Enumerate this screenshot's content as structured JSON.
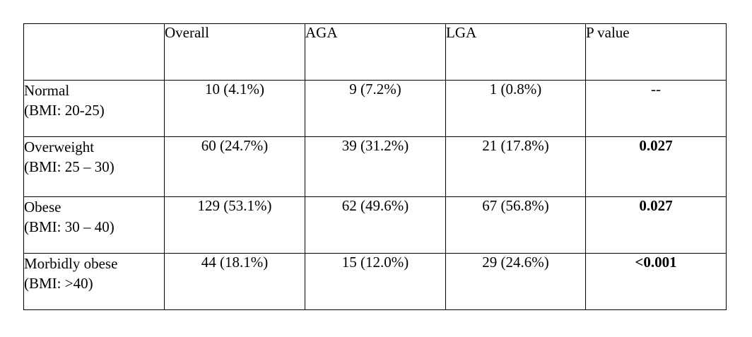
{
  "table": {
    "headers": [
      "",
      "Overall",
      "AGA",
      "LGA",
      "P value"
    ],
    "rows": [
      {
        "label_line1": "Normal",
        "label_line2": "(BMI: 20-25)",
        "overall": "10 (4.1%)",
        "aga": "9 (7.2%)",
        "lga": "1 (0.8%)",
        "p_value": "--"
      },
      {
        "label_line1": "Overweight",
        "label_line2": "(BMI: 25 – 30)",
        "overall": "60 (24.7%)",
        "aga": "39 (31.2%)",
        "lga": "21 (17.8%)",
        "p_value": "0.027"
      },
      {
        "label_line1": "Obese",
        "label_line2": "(BMI: 30 – 40)",
        "overall": "129 (53.1%)",
        "aga": "62 (49.6%)",
        "lga": "67 (56.8%)",
        "p_value": "0.027"
      },
      {
        "label_line1": "Morbidly obese",
        "label_line2": "(BMI: >40)",
        "overall": "44 (18.1%)",
        "aga": "15 (12.0%)",
        "lga": "29 (24.6%)",
        "p_value": "<0.001"
      }
    ]
  }
}
